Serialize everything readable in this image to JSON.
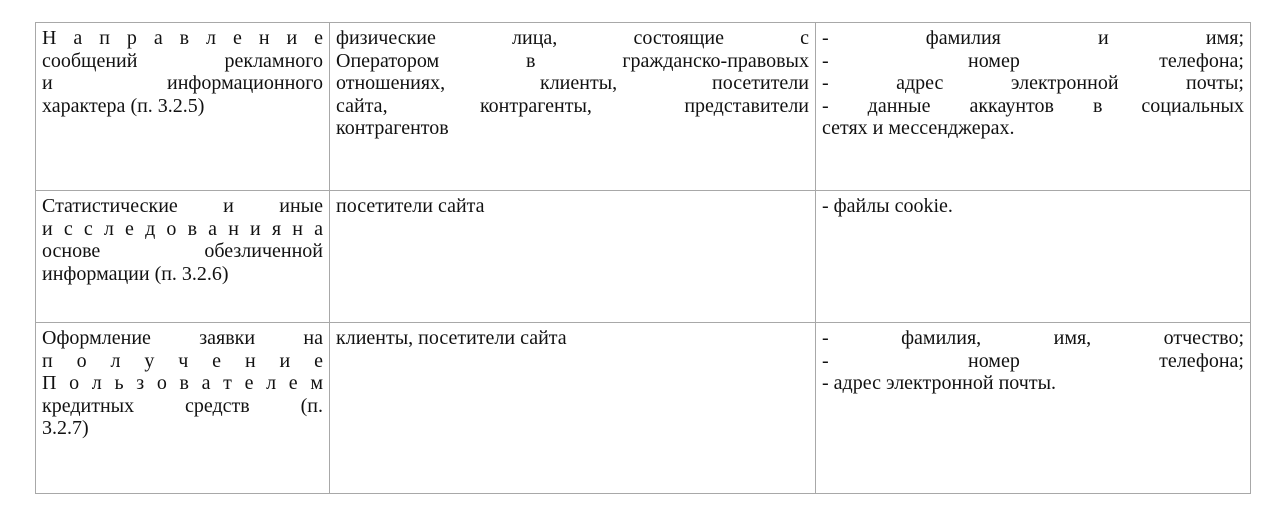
{
  "table": {
    "rows": [
      {
        "purpose": [
          "Н а п р а в л е н и е",
          "сообщений рекламного",
          "и информационного",
          "характера (п. 3.2.5)"
        ],
        "subjects": [
          "физические лица, состоящие с",
          "Оператором в гражданско-правовых",
          "отношениях, клиенты, посетители",
          "сайта, контрагенты, представители",
          "контрагентов"
        ],
        "data": [
          "- фамилия и имя;",
          "- номер телефона;",
          " - адрес электронной почты;",
          "- данные аккаунтов в социальных",
          "сетях и мессенджерах."
        ]
      },
      {
        "purpose": [
          "Статистические и иные",
          "и с с л е д о в а н и я н а",
          "основе обезличенной",
          "информации (п. 3.2.6)"
        ],
        "subjects": [
          "посетители сайта"
        ],
        "data": [
          "- файлы cookie."
        ]
      },
      {
        "purpose": [
          "Оформление заявки на",
          "п о л у ч е н и е",
          "П о л ь з о в а т е л е м",
          "кредитных средств (п.",
          "3.2.7)"
        ],
        "subjects": [
          "клиенты, посетители сайта"
        ],
        "data": [
          "- фамилия, имя, отчество;",
          "- номер телефона;",
          "- адрес электронной почты."
        ]
      }
    ]
  }
}
